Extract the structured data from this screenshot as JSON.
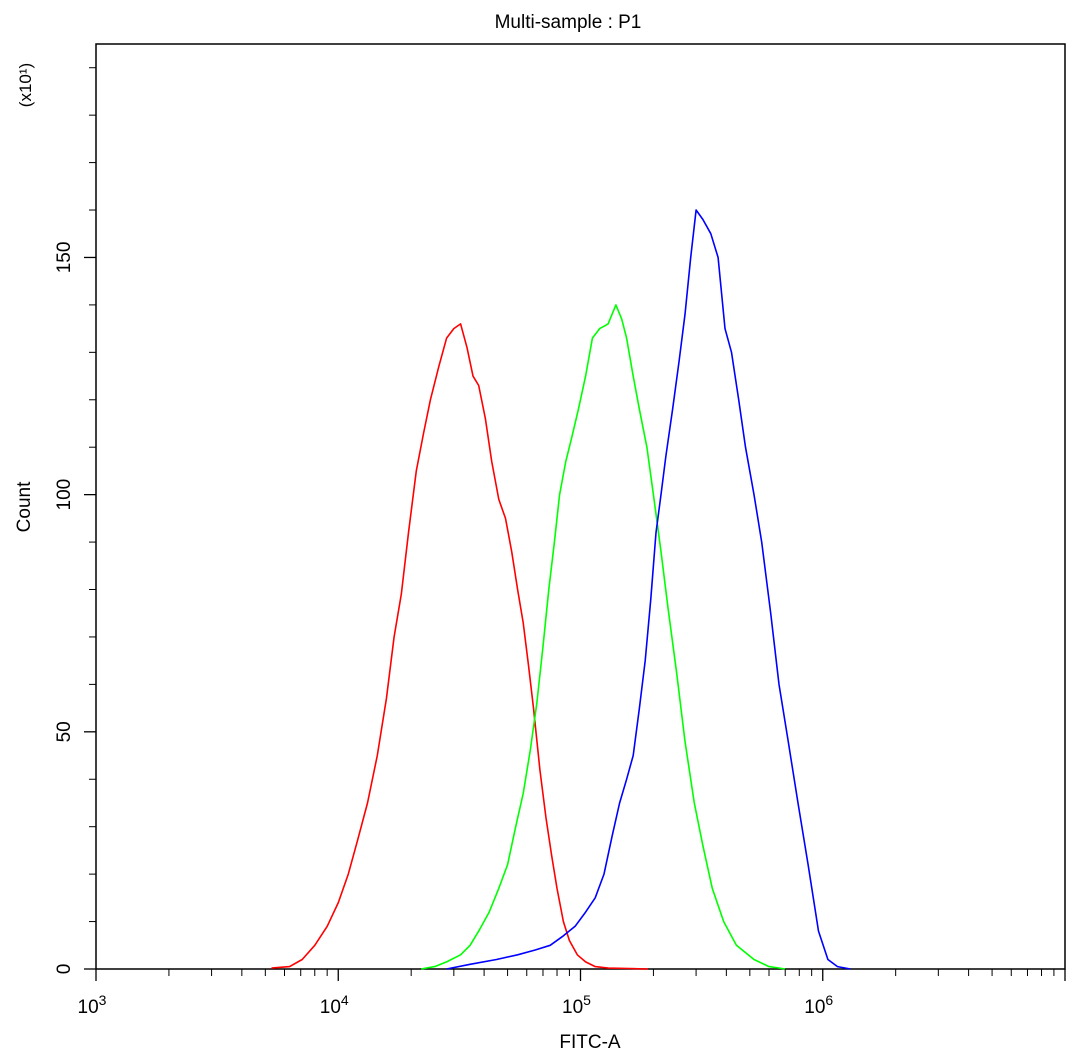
{
  "chart_data": {
    "type": "line",
    "title": "Multi-sample : P1",
    "xlabel": "FITC-A",
    "ylabel": "Count",
    "y_multiplier_label": "(x10¹)",
    "x_scale": "log",
    "xlim": [
      1000,
      10000000
    ],
    "ylim": [
      0,
      195
    ],
    "grid": false,
    "legend": "none",
    "x_ticks": [
      {
        "value": 1000,
        "base": "10",
        "exp": "3"
      },
      {
        "value": 10000,
        "base": "10",
        "exp": "4"
      },
      {
        "value": 100000,
        "base": "10",
        "exp": "5"
      },
      {
        "value": 1000000,
        "base": "10",
        "exp": "6"
      }
    ],
    "y_ticks": [
      {
        "value": 0,
        "label": "0"
      },
      {
        "value": 50,
        "label": "50"
      },
      {
        "value": 100,
        "label": "100"
      },
      {
        "value": 150,
        "label": "150"
      }
    ],
    "series": [
      {
        "color": "#ff0000",
        "x": [
          5300,
          6300,
          7100,
          8000,
          9000,
          10000,
          11000,
          12000,
          13200,
          14500,
          15800,
          17000,
          18200,
          19500,
          21000,
          22500,
          24000,
          26000,
          28000,
          30000,
          32000,
          34000,
          36000,
          38000,
          40500,
          43000,
          46000,
          49000,
          52000,
          55000,
          58000,
          61000,
          64000,
          68000,
          72000,
          76000,
          80000,
          85000,
          90000,
          97000,
          105000,
          115000,
          130000,
          160000,
          190000
        ],
        "y": [
          0.2,
          0.5,
          2,
          5,
          9,
          14,
          20,
          27,
          35,
          45,
          57,
          70,
          79,
          92,
          105,
          113,
          120,
          127,
          133,
          135,
          136,
          131,
          125,
          123,
          116,
          107,
          99,
          95,
          88,
          80,
          73,
          64,
          55,
          42,
          32,
          24,
          17,
          10,
          6,
          3,
          1.5,
          0.5,
          0.2,
          0.1,
          0
        ]
      },
      {
        "color": "#00ff00",
        "x": [
          22000,
          25000,
          28000,
          32000,
          35000,
          38000,
          42000,
          46000,
          50000,
          54000,
          58000,
          62000,
          66000,
          70000,
          74000,
          78000,
          82000,
          87000,
          92000,
          98000,
          105000,
          112000,
          120000,
          130000,
          140000,
          148000,
          155000,
          165000,
          175000,
          188000,
          200000,
          215000,
          230000,
          250000,
          270000,
          295000,
          320000,
          350000,
          390000,
          440000,
          520000,
          600000,
          700000
        ],
        "y": [
          0,
          0.5,
          1.5,
          3,
          5,
          8,
          12,
          17,
          22,
          30,
          37,
          46,
          56,
          68,
          80,
          90,
          100,
          107,
          112,
          118,
          125,
          133,
          135,
          136,
          140,
          137,
          133,
          125,
          118,
          110,
          100,
          88,
          76,
          62,
          48,
          35,
          26,
          17,
          10,
          5,
          2,
          0.5,
          0
        ]
      },
      {
        "color": "#0000ff",
        "x": [
          28000,
          35000,
          45000,
          55000,
          65000,
          75000,
          85000,
          95000,
          105000,
          115000,
          125000,
          135000,
          145000,
          155000,
          165000,
          175000,
          185000,
          195000,
          205000,
          215000,
          225000,
          240000,
          255000,
          270000,
          285000,
          300000,
          320000,
          345000,
          370000,
          395000,
          420000,
          450000,
          480000,
          520000,
          560000,
          610000,
          660000,
          720000,
          790000,
          870000,
          960000,
          1050000,
          1150000,
          1300000
        ],
        "y": [
          0,
          1,
          2,
          3,
          4,
          5,
          7,
          9,
          12,
          15,
          20,
          28,
          35,
          40,
          45,
          55,
          65,
          78,
          92,
          100,
          108,
          118,
          128,
          138,
          150,
          160,
          158,
          155,
          150,
          135,
          130,
          120,
          110,
          100,
          90,
          75,
          60,
          48,
          35,
          22,
          8,
          2,
          0.5,
          0
        ]
      }
    ]
  }
}
